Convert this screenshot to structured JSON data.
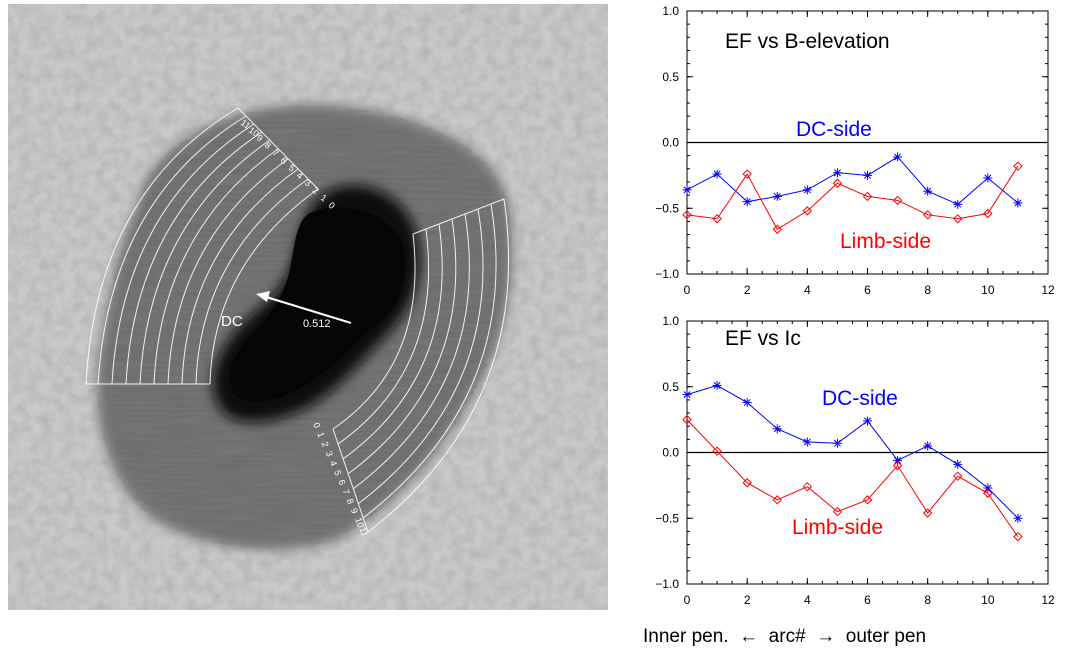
{
  "figure": {
    "caption": "Inner pen.  ←  arc#  →  outer pen"
  },
  "image_panel": {
    "arrow_label": "DC",
    "arrow_value": "0.512",
    "arc_numbers_upper": [
      "11",
      "10",
      "9",
      "8",
      "7",
      "6",
      "5",
      "4",
      "3",
      "2",
      "1",
      "0"
    ],
    "arc_numbers_lower": [
      "0",
      "1",
      "2",
      "3",
      "4",
      "5",
      "6",
      "7",
      "8",
      "9",
      "10",
      "11"
    ]
  },
  "colors": {
    "dc_side": "#0000ff",
    "limb_side": "#ff0000",
    "zero_line": "#000000"
  },
  "chart_data": [
    {
      "type": "line",
      "title": "EF vs B-elevation",
      "xlim": [
        0,
        12
      ],
      "ylim": [
        -1.0,
        1.0
      ],
      "xticks": [
        "0",
        "2",
        "4",
        "6",
        "8",
        "10",
        "12"
      ],
      "yticks": [
        "−1.0",
        "−0.5",
        "0.0",
        "0.5",
        "1.0"
      ],
      "x": [
        0,
        1,
        2,
        3,
        4,
        5,
        6,
        7,
        8,
        9,
        10,
        11
      ],
      "series": [
        {
          "name": "DC-side",
          "marker": "asterisk",
          "values": [
            -0.36,
            -0.24,
            -0.45,
            -0.41,
            -0.36,
            -0.23,
            -0.25,
            -0.11,
            -0.37,
            -0.47,
            -0.27,
            -0.46
          ]
        },
        {
          "name": "Limb-side",
          "marker": "diamond",
          "values": [
            -0.55,
            -0.58,
            -0.24,
            -0.66,
            -0.52,
            -0.31,
            -0.41,
            -0.44,
            -0.55,
            -0.58,
            -0.54,
            -0.18
          ]
        }
      ]
    },
    {
      "type": "line",
      "title": "EF vs Ic",
      "xlim": [
        0,
        12
      ],
      "ylim": [
        -1.0,
        1.0
      ],
      "xticks": [
        "0",
        "2",
        "4",
        "6",
        "8",
        "10",
        "12"
      ],
      "yticks": [
        "−1.0",
        "−0.5",
        "0.0",
        "0.5",
        "1.0"
      ],
      "x": [
        0,
        1,
        2,
        3,
        4,
        5,
        6,
        7,
        8,
        9,
        10,
        11
      ],
      "series": [
        {
          "name": "DC-side",
          "marker": "asterisk",
          "values": [
            0.44,
            0.51,
            0.38,
            0.18,
            0.08,
            0.07,
            0.24,
            -0.06,
            0.05,
            -0.09,
            -0.27,
            -0.5
          ]
        },
        {
          "name": "Limb-side",
          "marker": "diamond",
          "values": [
            0.25,
            0.01,
            -0.23,
            -0.36,
            -0.26,
            -0.45,
            -0.36,
            -0.1,
            -0.46,
            -0.18,
            -0.31,
            -0.64
          ]
        }
      ]
    }
  ]
}
